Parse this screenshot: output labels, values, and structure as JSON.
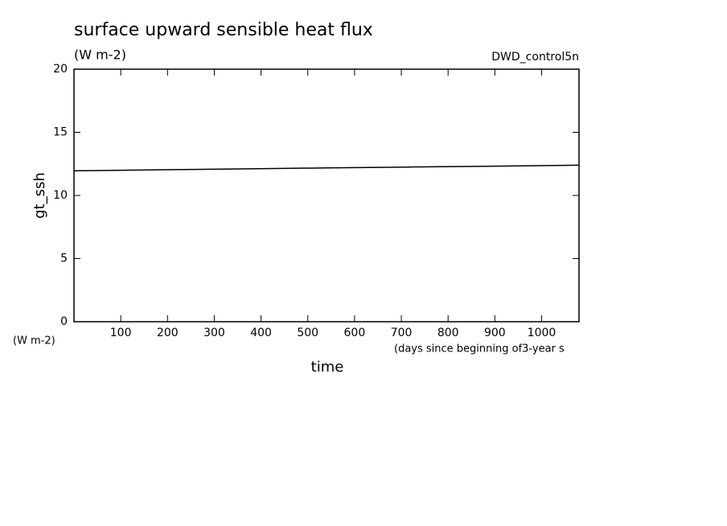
{
  "chart_data": {
    "type": "line",
    "title": "surface upward sensible heat flux",
    "subtitle": "(W m-2)",
    "annotation": "DWD_control5n",
    "ylabel": "gt_ssh",
    "yunits": "(W m-2)",
    "xunits": "(days since beginning of3-year s",
    "xlabel": "time",
    "x": [
      0,
      180,
      360,
      540,
      720,
      900,
      1080
    ],
    "series": [
      {
        "color": "#000000",
        "values": [
          11.95,
          12.03,
          12.1,
          12.18,
          12.25,
          12.32,
          12.4
        ]
      }
    ],
    "xlim": [
      0,
      1080
    ],
    "xticks": [
      100,
      200,
      300,
      400,
      500,
      600,
      700,
      800,
      900,
      1000
    ],
    "ylim": [
      0,
      20
    ],
    "yticks": [
      0,
      5,
      10,
      15,
      20
    ],
    "grid": false
  }
}
